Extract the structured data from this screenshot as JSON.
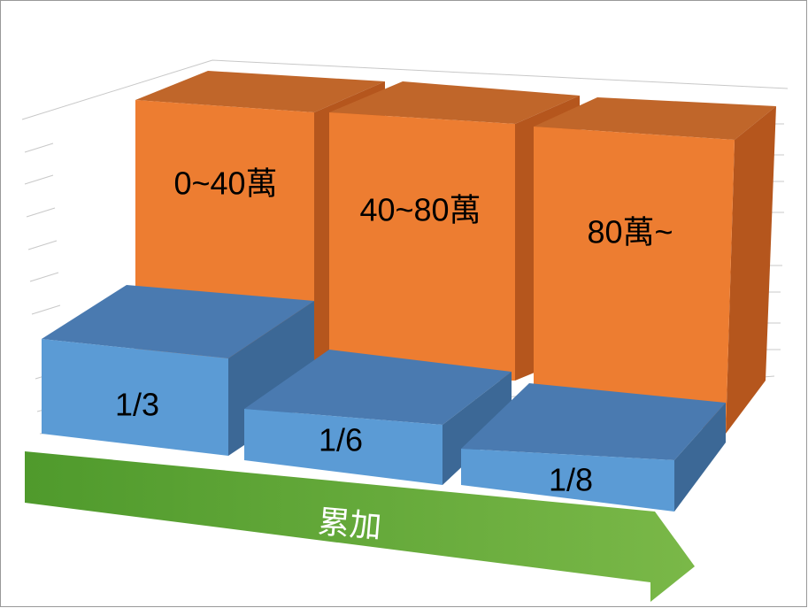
{
  "blocks": [
    {
      "top_label": "0~40萬",
      "bottom_label": "1/3"
    },
    {
      "top_label": "40~80萬",
      "bottom_label": "1/6"
    },
    {
      "top_label": "80萬~",
      "bottom_label": "1/8"
    }
  ],
  "arrow_label": "累加"
}
